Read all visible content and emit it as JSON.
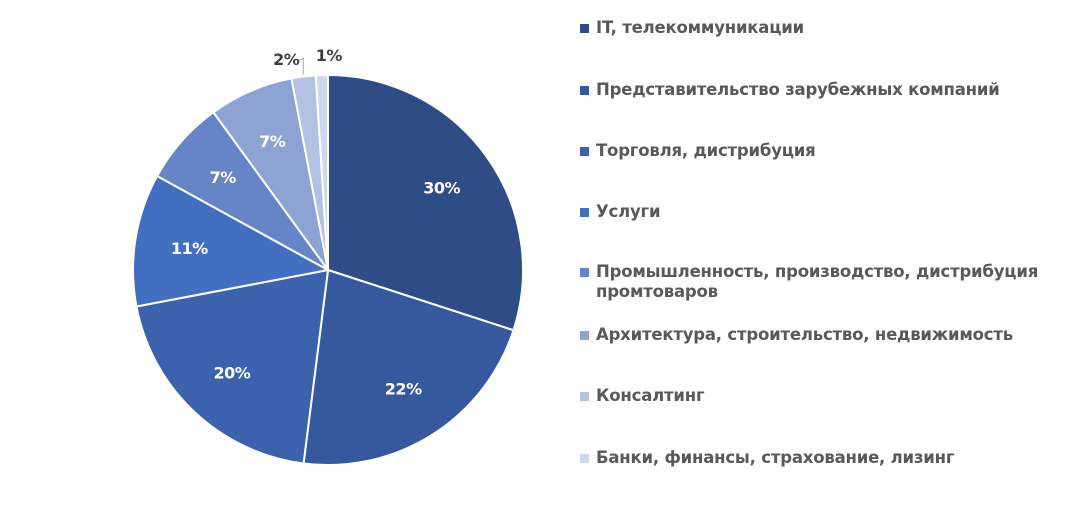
{
  "chart_data": {
    "type": "pie",
    "title": "",
    "legend_position": "right",
    "start_angle_deg": 0,
    "direction": "clockwise",
    "categories": [
      "IT, телекоммуникации",
      "Представительство зарубежных компаний",
      "Торговля, дистрибуция",
      "Услуги",
      "Промышленность, производство, дистрибуция промтоваров",
      "Архитектура, строительство, недвижимость",
      "Консалтинг",
      "Банки, финансы, страхование, лизинг"
    ],
    "values": [
      30,
      22,
      20,
      11,
      7,
      7,
      2,
      1
    ],
    "data_labels": [
      "30%",
      "22%",
      "20%",
      "11%",
      "7%",
      "7%",
      "2%",
      "1%"
    ],
    "colors": [
      "#2e4d87",
      "#35589f",
      "#3a62ad",
      "#426fbf",
      "#6585c8",
      "#8da3d4",
      "#b3c2e3",
      "#cdd7ee"
    ],
    "label_colors": [
      "#ffffff",
      "#ffffff",
      "#ffffff",
      "#ffffff",
      "#ffffff",
      "#ffffff",
      "#404040",
      "#404040"
    ],
    "legend_swatch_colors": [
      "#2e4d87",
      "#35589f",
      "#3a62ad",
      "#426fbf",
      "#6585c8",
      "#8da3d4",
      "#b3c2e3",
      "#cdd7ee"
    ]
  }
}
